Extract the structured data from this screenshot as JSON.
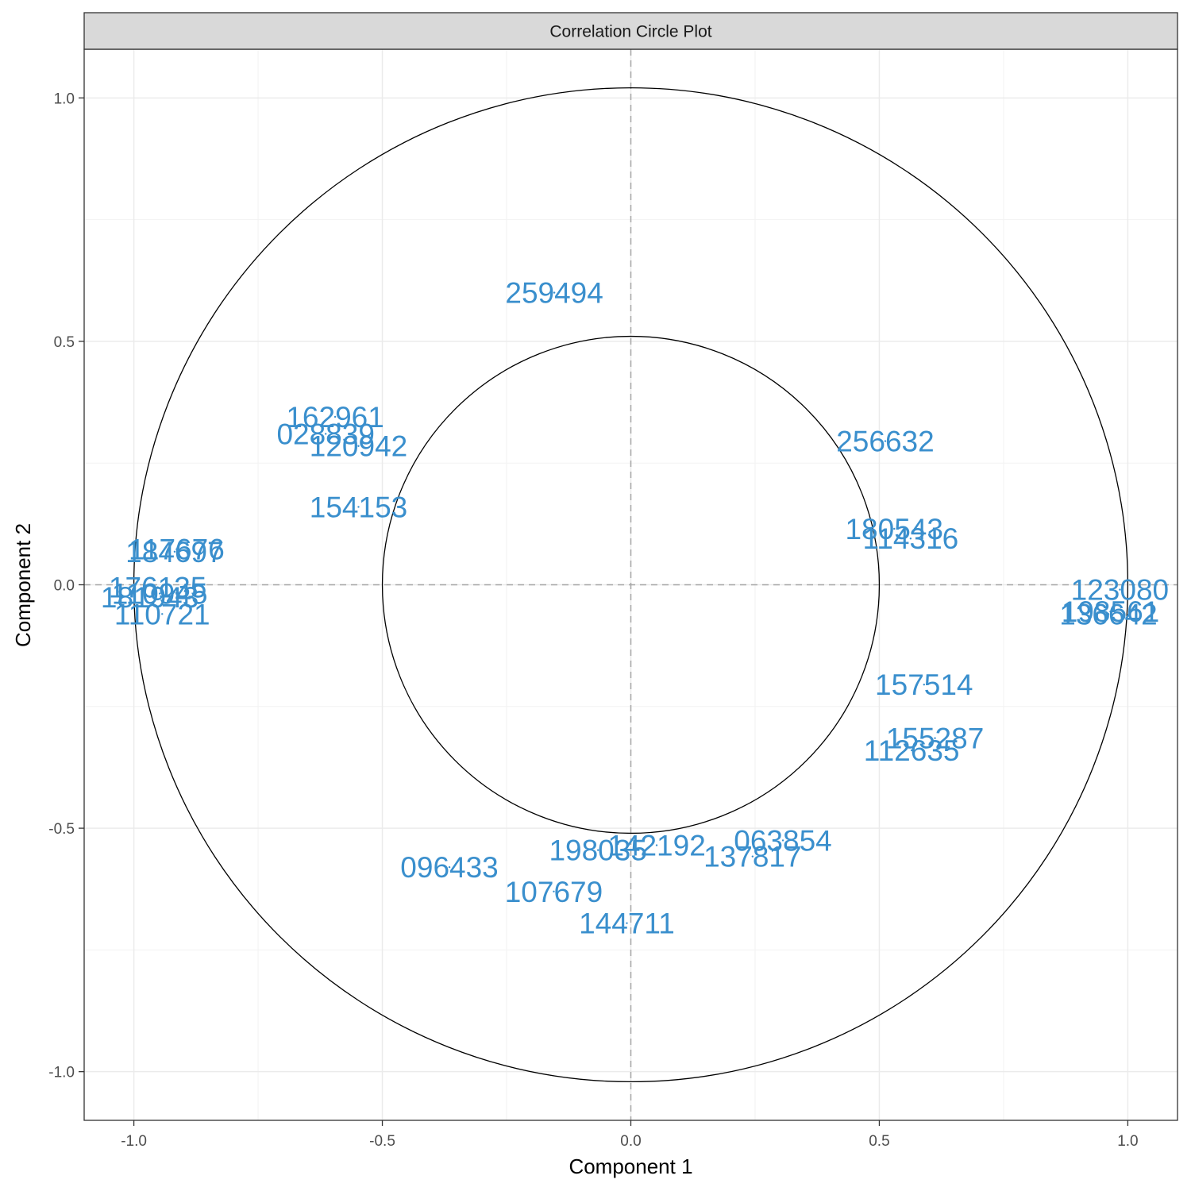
{
  "chart_data": {
    "type": "scatter",
    "title": "Correlation Circle Plot",
    "xlabel": "Component  1",
    "ylabel": "Component  2",
    "xlim": [
      -1.1,
      1.1
    ],
    "ylim": [
      -1.1,
      1.1
    ],
    "x_ticks": [
      -1.0,
      -0.5,
      0.0,
      0.5,
      1.0
    ],
    "y_ticks": [
      -1.0,
      -0.5,
      0.0,
      0.5,
      1.0
    ],
    "x_tick_labels": [
      "-1.0",
      "-0.5",
      "0.0",
      "0.5",
      "1.0"
    ],
    "y_tick_labels": [
      "-1.0",
      "-0.5",
      "0.0",
      "0.5",
      "1.0"
    ],
    "grid": true,
    "circles": [
      0.5,
      1.0
    ],
    "reference_lines": "dashed at x=0 and y=0",
    "point_color": "#3a8fcd",
    "points": [
      {
        "label": "259494",
        "x": -0.154,
        "y": 0.6
      },
      {
        "label": "162961",
        "x": -0.595,
        "y": 0.345
      },
      {
        "label": "028839",
        "x": -0.614,
        "y": 0.31
      },
      {
        "label": "120942",
        "x": -0.548,
        "y": 0.285
      },
      {
        "label": "154153",
        "x": -0.548,
        "y": 0.16
      },
      {
        "label": "117676",
        "x": -0.914,
        "y": 0.073
      },
      {
        "label": "184697",
        "x": -0.918,
        "y": 0.068
      },
      {
        "label": "176135",
        "x": -0.952,
        "y": -0.005
      },
      {
        "label": "181943",
        "x": -0.968,
        "y": -0.025
      },
      {
        "label": "110945",
        "x": -0.948,
        "y": -0.018
      },
      {
        "label": "110721",
        "x": -0.943,
        "y": -0.06
      },
      {
        "label": "256632",
        "x": 0.512,
        "y": 0.295
      },
      {
        "label": "180543",
        "x": 0.53,
        "y": 0.115
      },
      {
        "label": "114316",
        "x": 0.563,
        "y": 0.095
      },
      {
        "label": "123080",
        "x": 0.984,
        "y": -0.01
      },
      {
        "label": "198561",
        "x": 0.965,
        "y": -0.055
      },
      {
        "label": "136642",
        "x": 0.961,
        "y": -0.06
      },
      {
        "label": "157514",
        "x": 0.59,
        "y": -0.205
      },
      {
        "label": "155287",
        "x": 0.612,
        "y": -0.315
      },
      {
        "label": "112635",
        "x": 0.565,
        "y": -0.34
      },
      {
        "label": "198035",
        "x": -0.066,
        "y": -0.545
      },
      {
        "label": "142192",
        "x": 0.052,
        "y": -0.535
      },
      {
        "label": "063854",
        "x": 0.306,
        "y": -0.525
      },
      {
        "label": "137817",
        "x": 0.245,
        "y": -0.558
      },
      {
        "label": "096433",
        "x": -0.365,
        "y": -0.58
      },
      {
        "label": "107679",
        "x": -0.155,
        "y": -0.63
      },
      {
        "label": "144711",
        "x": -0.008,
        "y": -0.695
      }
    ]
  }
}
